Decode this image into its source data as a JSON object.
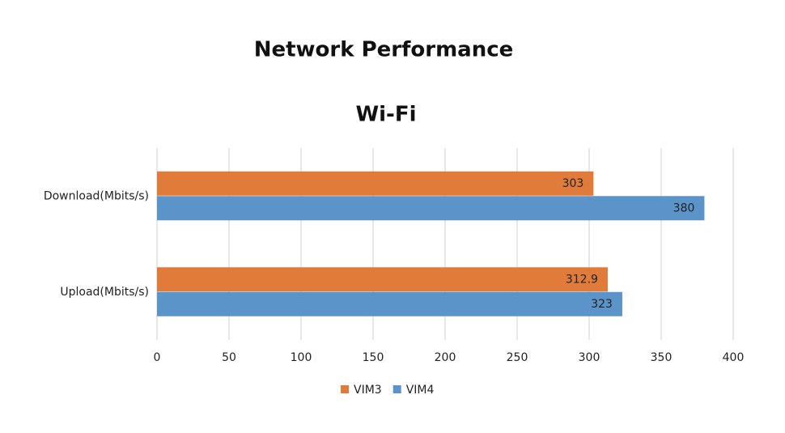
{
  "chart_data": {
    "type": "bar",
    "orientation": "horizontal",
    "title": "Network Performance",
    "subtitle": "Wi-Fi",
    "categories": [
      "Download(Mbits/s)",
      "Upload(Mbits/s)"
    ],
    "series": [
      {
        "name": "VIM3",
        "color": "#e07b39",
        "values": [
          303,
          312.9
        ]
      },
      {
        "name": "VIM4",
        "color": "#5b94c8",
        "values": [
          380,
          323
        ]
      }
    ],
    "xlim": [
      0,
      400
    ],
    "xticks": [
      0,
      50,
      100,
      150,
      200,
      250,
      300,
      350,
      400
    ],
    "grid": true,
    "legend": "bottom"
  }
}
